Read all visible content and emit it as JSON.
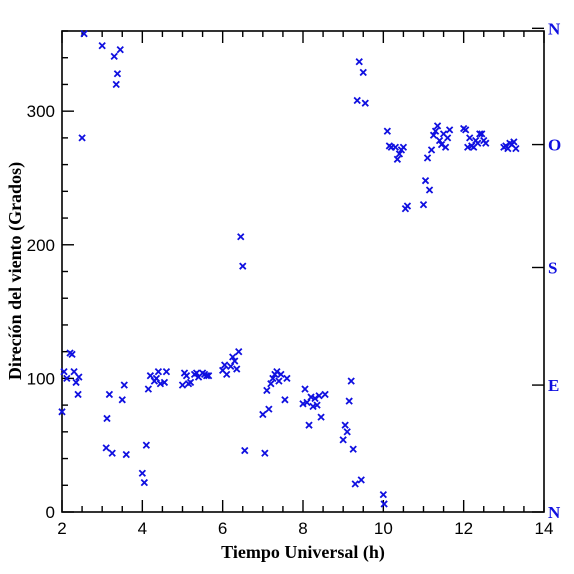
{
  "chart_data": {
    "type": "scatter",
    "xlabel": "Tiempo Universal (h)",
    "ylabel": "Direcíón del viento (Grados)",
    "xlim": [
      2,
      14
    ],
    "ylim": [
      0,
      360
    ],
    "xticks": [
      2,
      4,
      6,
      8,
      10,
      12,
      14
    ],
    "yticks": [
      0,
      100,
      200,
      300
    ],
    "right_axis": [
      {
        "label": "N",
        "value": 0
      },
      {
        "label": "E",
        "value": 95
      },
      {
        "label": "S",
        "value": 183
      },
      {
        "label": "O",
        "value": 275
      },
      {
        "label": "N",
        "value": 362
      }
    ],
    "marker_color": "#1010e0",
    "points": [
      [
        2.0,
        75
      ],
      [
        2.05,
        105
      ],
      [
        2.12,
        100
      ],
      [
        2.2,
        119
      ],
      [
        2.25,
        118
      ],
      [
        2.3,
        105
      ],
      [
        2.35,
        97
      ],
      [
        2.4,
        88
      ],
      [
        2.42,
        101
      ],
      [
        2.5,
        280
      ],
      [
        2.55,
        358
      ],
      [
        3.0,
        349
      ],
      [
        3.1,
        48
      ],
      [
        3.12,
        70
      ],
      [
        3.18,
        88
      ],
      [
        3.25,
        44
      ],
      [
        3.3,
        341
      ],
      [
        3.35,
        320
      ],
      [
        3.38,
        328
      ],
      [
        3.45,
        346
      ],
      [
        3.5,
        84
      ],
      [
        3.55,
        95
      ],
      [
        3.6,
        43
      ],
      [
        4.0,
        29
      ],
      [
        4.05,
        22
      ],
      [
        4.1,
        50
      ],
      [
        4.15,
        92
      ],
      [
        4.2,
        102
      ],
      [
        4.3,
        98
      ],
      [
        4.35,
        100
      ],
      [
        4.4,
        105
      ],
      [
        4.45,
        96
      ],
      [
        4.55,
        97
      ],
      [
        4.6,
        105
      ],
      [
        5.0,
        95
      ],
      [
        5.05,
        104
      ],
      [
        5.1,
        102
      ],
      [
        5.15,
        96
      ],
      [
        5.2,
        97
      ],
      [
        5.3,
        103
      ],
      [
        5.35,
        104
      ],
      [
        5.4,
        101
      ],
      [
        5.5,
        104
      ],
      [
        5.55,
        103
      ],
      [
        5.6,
        102
      ],
      [
        5.65,
        102
      ],
      [
        6.0,
        106
      ],
      [
        6.05,
        110
      ],
      [
        6.1,
        103
      ],
      [
        6.2,
        109
      ],
      [
        6.25,
        116
      ],
      [
        6.3,
        113
      ],
      [
        6.35,
        107
      ],
      [
        6.4,
        120
      ],
      [
        6.45,
        206
      ],
      [
        6.5,
        184
      ],
      [
        6.55,
        46
      ],
      [
        7.0,
        73
      ],
      [
        7.05,
        44
      ],
      [
        7.1,
        91
      ],
      [
        7.15,
        77
      ],
      [
        7.2,
        96
      ],
      [
        7.25,
        100
      ],
      [
        7.3,
        103
      ],
      [
        7.35,
        105
      ],
      [
        7.4,
        98
      ],
      [
        7.45,
        103
      ],
      [
        7.55,
        84
      ],
      [
        7.6,
        100
      ],
      [
        8.0,
        81
      ],
      [
        8.05,
        92
      ],
      [
        8.1,
        82
      ],
      [
        8.15,
        65
      ],
      [
        8.2,
        86
      ],
      [
        8.25,
        79
      ],
      [
        8.3,
        85
      ],
      [
        8.35,
        80
      ],
      [
        8.4,
        87
      ],
      [
        8.45,
        71
      ],
      [
        8.55,
        88
      ],
      [
        9.0,
        54
      ],
      [
        9.05,
        65
      ],
      [
        9.1,
        60
      ],
      [
        9.15,
        83
      ],
      [
        9.2,
        98
      ],
      [
        9.25,
        47
      ],
      [
        9.3,
        21
      ],
      [
        9.35,
        308
      ],
      [
        9.4,
        337
      ],
      [
        9.45,
        24
      ],
      [
        9.5,
        329
      ],
      [
        9.55,
        306
      ],
      [
        10.0,
        13
      ],
      [
        10.02,
        6
      ],
      [
        10.1,
        285
      ],
      [
        10.15,
        274
      ],
      [
        10.2,
        273
      ],
      [
        10.3,
        273
      ],
      [
        10.35,
        264
      ],
      [
        10.4,
        268
      ],
      [
        10.45,
        271
      ],
      [
        10.5,
        273
      ],
      [
        10.55,
        227
      ],
      [
        10.6,
        229
      ],
      [
        11.0,
        230
      ],
      [
        11.05,
        248
      ],
      [
        11.1,
        265
      ],
      [
        11.15,
        241
      ],
      [
        11.2,
        271
      ],
      [
        11.25,
        282
      ],
      [
        11.3,
        285
      ],
      [
        11.35,
        289
      ],
      [
        11.4,
        278
      ],
      [
        11.45,
        275
      ],
      [
        11.5,
        283
      ],
      [
        11.55,
        273
      ],
      [
        11.6,
        280
      ],
      [
        11.65,
        286
      ],
      [
        12.0,
        287
      ],
      [
        12.05,
        286
      ],
      [
        12.1,
        273
      ],
      [
        12.15,
        280
      ],
      [
        12.2,
        274
      ],
      [
        12.25,
        273
      ],
      [
        12.3,
        278
      ],
      [
        12.35,
        276
      ],
      [
        12.4,
        283
      ],
      [
        12.45,
        283
      ],
      [
        12.5,
        278
      ],
      [
        12.55,
        276
      ],
      [
        13.0,
        273
      ],
      [
        13.05,
        274
      ],
      [
        13.1,
        272
      ],
      [
        13.15,
        276
      ],
      [
        13.2,
        275
      ],
      [
        13.25,
        277
      ],
      [
        13.3,
        272
      ]
    ]
  }
}
